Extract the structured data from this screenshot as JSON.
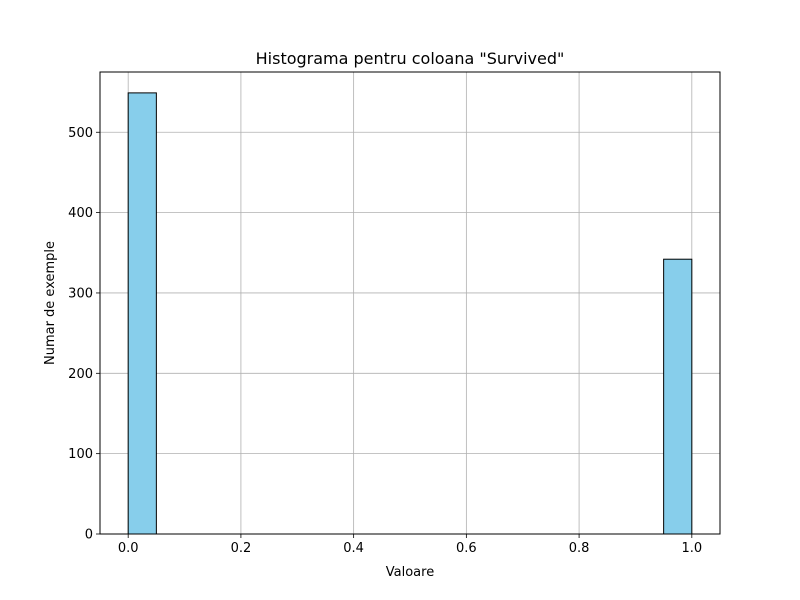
{
  "chart_data": {
    "type": "bar",
    "title": "Histograma pentru coloana \"Survived\"",
    "xlabel": "Valoare",
    "ylabel": "Numar de exemple",
    "xlim": [
      -0.05,
      1.05
    ],
    "ylim": [
      0,
      575
    ],
    "xticks": [
      "0.0",
      "0.2",
      "0.4",
      "0.6",
      "0.8",
      "1.0"
    ],
    "yticks": [
      "0",
      "100",
      "200",
      "300",
      "400",
      "500"
    ],
    "grid": true,
    "bins": [
      {
        "start": 0.0,
        "end": 0.05,
        "value": 549
      },
      {
        "start": 0.95,
        "end": 1.0,
        "value": 342
      }
    ],
    "colors": {
      "bar_fill": "#87ceeb",
      "bar_edge": "#000000",
      "grid": "#b0b0b0"
    }
  }
}
